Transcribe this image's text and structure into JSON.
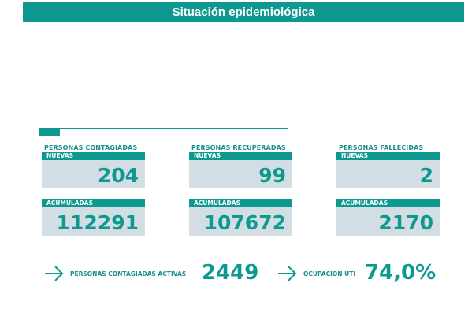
{
  "header": {
    "title": "Situación epidemiológica"
  },
  "cards": [
    {
      "category": "PERSONAS CONTAGIADAS",
      "new_label": "NUEVAS",
      "new_value": "204",
      "total_label": "ACUMULADAS",
      "total_value": "112291"
    },
    {
      "category": "PERSONAS RECUPERADAS",
      "new_label": "NUEVAS",
      "new_value": "99",
      "total_label": "ACUMULADAS",
      "total_value": "107672"
    },
    {
      "category": "PERSONAS FALLECIDAS",
      "new_label": "NUEVAS",
      "new_value": "2",
      "total_label": "ACUMULADAS",
      "total_value": "2170"
    }
  ],
  "stats": {
    "active": {
      "label": "PERSONAS CONTAGIADAS ACTIVAS",
      "value": "2449"
    },
    "icu": {
      "label": "OCUPACION UTI",
      "value": "74,0%"
    }
  },
  "colors": {
    "accent": "#0e9990",
    "box_bg": "#d3dde4",
    "text_teal": "#1a8d8d"
  },
  "icons": [
    "arrow-right-icon"
  ]
}
